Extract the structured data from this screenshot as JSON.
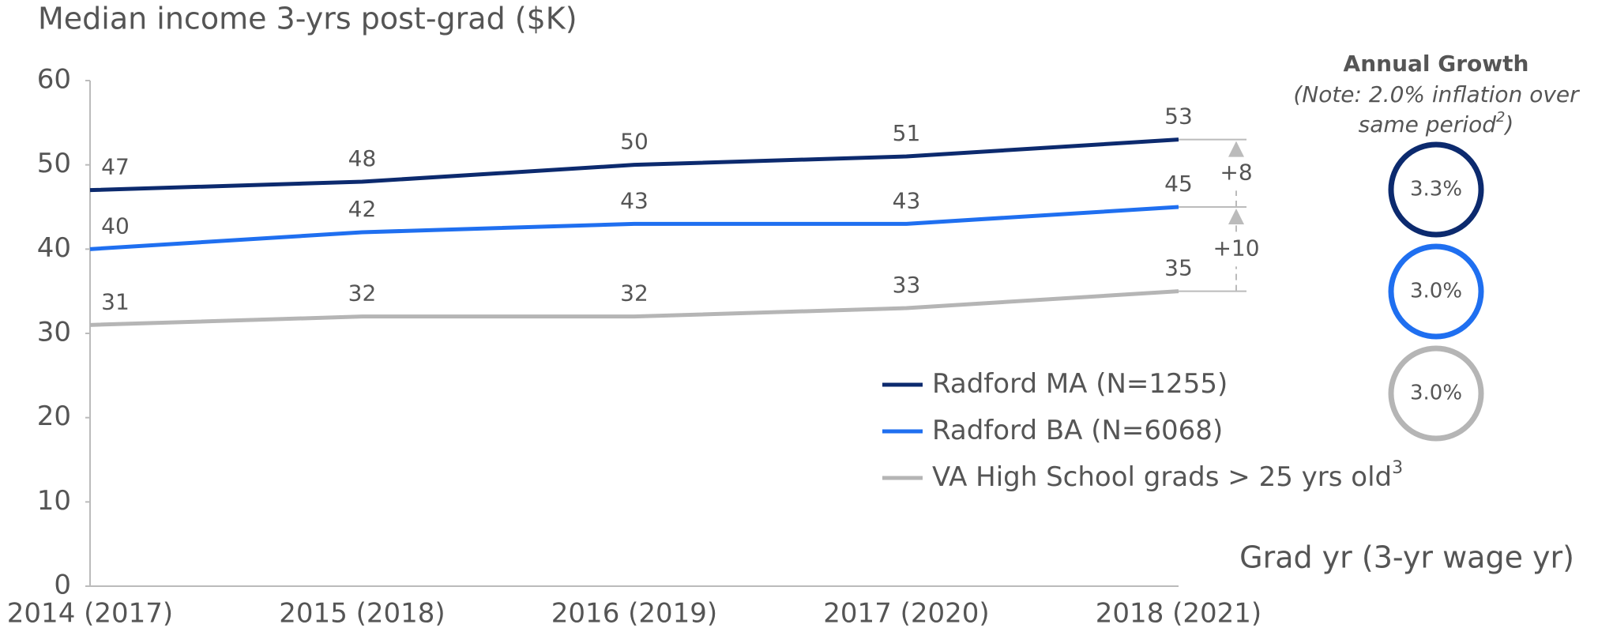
{
  "chart_data": {
    "type": "line",
    "title": "Median income 3-yrs post-grad ($K)",
    "x_label": "Grad yr (3-yr wage yr)",
    "categories": [
      "2014 (2017)",
      "2015 (2018)",
      "2016 (2019)",
      "2017 (2020)",
      "2018 (2021)"
    ],
    "series": [
      {
        "name": "Radford MA (N=1255)",
        "color": "#0c2a6e",
        "values": [
          47,
          48,
          50,
          51,
          53
        ],
        "growth": "3.3%"
      },
      {
        "name": "Radford BA (N=6068)",
        "color": "#1f6ff0",
        "values": [
          40,
          42,
          43,
          43,
          45
        ],
        "growth": "3.0%"
      },
      {
        "name": "VA High School grads > 25 yrs old",
        "name_sup": "3",
        "color": "#b5b5b5",
        "values": [
          31,
          32,
          32,
          33,
          35
        ],
        "growth": "3.0%"
      }
    ],
    "ylim": [
      0,
      60
    ],
    "yticks": [
      0,
      10,
      20,
      30,
      40,
      50,
      60
    ],
    "grid": false,
    "gap_labels": [
      "+8",
      "+10"
    ],
    "growth_panel": {
      "title": "Annual Growth",
      "note_lines": [
        "(Note: 2.0% inflation over",
        "same period"
      ],
      "note_sup": "2",
      "note_end": ")"
    }
  }
}
